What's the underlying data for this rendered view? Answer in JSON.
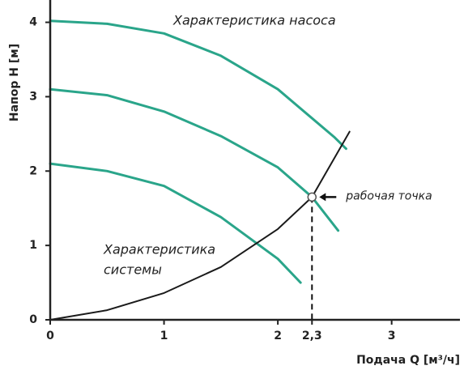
{
  "chart_data": {
    "type": "line",
    "xlabel": "Подача Q  [м³/ч]",
    "ylabel": "Напор Н [м]",
    "pump_label": "Характеристика насоса",
    "system_label": [
      "Характеристика",
      "системы"
    ],
    "xlim": [
      0,
      3.6
    ],
    "ylim": [
      0,
      4.3
    ],
    "xticks": [
      0,
      1,
      2,
      {
        "value": 2.3,
        "label": "2,3"
      },
      3
    ],
    "yticks": [
      0,
      1,
      2,
      3,
      4
    ],
    "highlight_color": "#e0245e",
    "series": [
      {
        "color": "#2aa58a",
        "x": [
          0,
          0.5,
          1,
          1.5,
          2,
          2.5,
          2.6
        ],
        "values": [
          4.02,
          3.98,
          3.85,
          3.55,
          3.1,
          2.45,
          2.3
        ]
      },
      {
        "color": "#2aa58a",
        "x": [
          0,
          0.5,
          1,
          1.5,
          2,
          2.3,
          2.53
        ],
        "values": [
          3.1,
          3.02,
          2.8,
          2.47,
          2.05,
          1.65,
          1.2
        ]
      },
      {
        "color": "#2aa58a",
        "x": [
          0,
          0.5,
          1,
          1.5,
          2,
          2.2
        ],
        "values": [
          2.1,
          2.0,
          1.8,
          1.38,
          0.82,
          0.5
        ]
      },
      {
        "color": "#1a1a1a",
        "x": [
          0,
          0.5,
          1,
          1.5,
          2,
          2.3,
          2.63
        ],
        "values": [
          0,
          0.13,
          0.36,
          0.71,
          1.22,
          1.65,
          2.53
        ]
      }
    ],
    "marker": {
      "x": 2.3,
      "y": 1.65,
      "label": "рабочая точка"
    }
  }
}
